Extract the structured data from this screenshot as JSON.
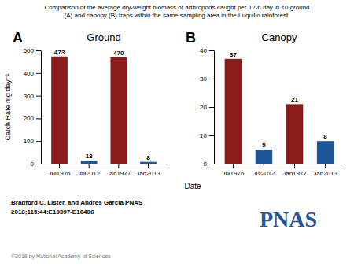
{
  "title": "Comparison of the average dry-weight biomass of arthropods caught per 12-h day in 10 ground\n(A) and canopy (B) traps within the same sampling area in the Luquillo rainforest.",
  "ylabel": "Catch Rate mg day⁻¹",
  "xlabel": "Date",
  "annotations": [
    {
      "text": "Bradford C. Lister, and Andres Garcia PNAS"
    },
    {
      "text": "2018;115:44:E10397-E10406"
    },
    {
      "text": "©2018 by National Academy of Sciences",
      "color": "gray"
    },
    {
      "text": "PNAS",
      "color": "#1E5799"
    }
  ],
  "chart_data": [
    {
      "type": "bar",
      "title": "Ground",
      "annotations": [
        {
          "text": "A"
        }
      ],
      "categories": [
        "Jul1976",
        "Jul2012",
        "Jan1977",
        "Jan2013"
      ],
      "values": [
        473,
        13,
        470,
        8
      ],
      "colors": [
        "#8B1A1A",
        "#1E5799",
        "#8B1A1A",
        "#1E5799"
      ],
      "ylim": [
        0,
        500
      ],
      "yticks": [
        0,
        100,
        200,
        300,
        400,
        500
      ],
      "data_labels": true,
      "grid": false
    },
    {
      "type": "bar",
      "title": "Canopy",
      "annotations": [
        {
          "text": "B"
        }
      ],
      "categories": [
        "Jul1976",
        "Jul2012",
        "Jan1977",
        "Jan2013"
      ],
      "values": [
        37,
        5,
        21,
        8
      ],
      "colors": [
        "#8B1A1A",
        "#1E5799",
        "#8B1A1A",
        "#1E5799"
      ],
      "ylim": [
        0,
        40
      ],
      "yticks": [
        0,
        10,
        20,
        30,
        40
      ],
      "data_labels": true,
      "grid": false
    }
  ]
}
